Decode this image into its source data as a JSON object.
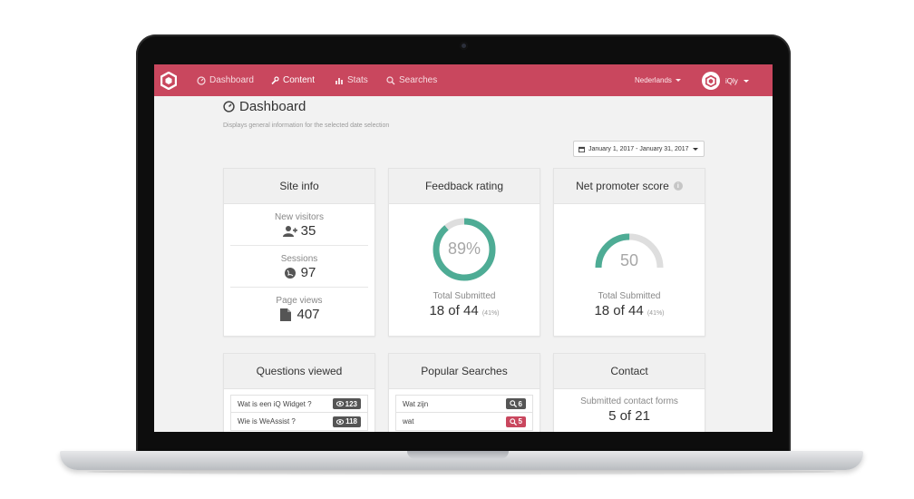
{
  "nav": {
    "items": [
      {
        "label": "Dashboard",
        "icon": "dashboard-icon"
      },
      {
        "label": "Content",
        "icon": "wrench-icon"
      },
      {
        "label": "Stats",
        "icon": "bar-chart-icon"
      },
      {
        "label": "Searches",
        "icon": "search-icon"
      }
    ],
    "language": "Nederlands",
    "user": "iQly",
    "brand_color": "#c9475e"
  },
  "page": {
    "title": "Dashboard",
    "subtitle": "Displays general information for the selected date selection",
    "date_range": "January 1, 2017 - January 31, 2017"
  },
  "site_info": {
    "title": "Site info",
    "stats": [
      {
        "label": "New visitors",
        "value": "35",
        "icon": "add-user-icon"
      },
      {
        "label": "Sessions",
        "value": "97",
        "icon": "globe-icon"
      },
      {
        "label": "Page views",
        "value": "407",
        "icon": "file-icon"
      }
    ]
  },
  "feedback": {
    "title": "Feedback rating",
    "percent_label": "89%",
    "percent": 89,
    "total_label": "Total Submitted",
    "total_value": "18 of 44",
    "total_pct": "(41%)",
    "color": "#4eac95"
  },
  "nps": {
    "title": "Net promoter score",
    "value_label": "50",
    "value": 50,
    "total_label": "Total Submitted",
    "total_value": "18 of 44",
    "total_pct": "(41%)"
  },
  "questions": {
    "title": "Questions viewed",
    "items": [
      {
        "label": "Wat is een iQ Widget ?",
        "count": "123"
      },
      {
        "label": "Wie is WeAssist ?",
        "count": "118"
      }
    ]
  },
  "searches": {
    "title": "Popular Searches",
    "items": [
      {
        "label": "Wat zijn",
        "count": "6"
      },
      {
        "label": "wat",
        "count": "5"
      }
    ]
  },
  "contact": {
    "title": "Contact",
    "label": "Submitted contact forms",
    "value": "5 of 21"
  }
}
